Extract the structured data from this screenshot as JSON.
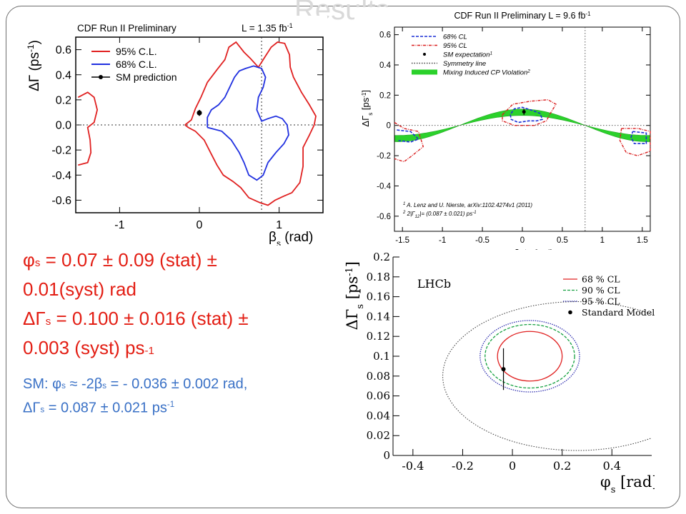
{
  "slide": {
    "title": "Results"
  },
  "results": {
    "phi_line1": [
      "φ",
      "s",
      " = 0.07 ± 0.09 (stat) ±"
    ],
    "phi_line2": "0.01(syst) rad",
    "dg_line1": [
      "ΔΓ",
      "s",
      " = 0.100 ± 0.016 (stat) ±"
    ],
    "dg_line2": [
      "0.003 (syst) ps",
      "-1"
    ]
  },
  "sm": {
    "line1": [
      "SM: φ",
      "s",
      " ≈ -2β",
      "s",
      " = - 0.036 ± 0.002 rad,"
    ],
    "line2": [
      "ΔΓ",
      "s",
      " = 0.087 ± 0.021 ps",
      "-1"
    ]
  },
  "chart_data": [
    {
      "type": "contour",
      "title": "CDF Run II Preliminary",
      "lumi": "L = 1.35 fb",
      "lumi_sup": "-1",
      "xlabel": "β",
      "xlabel_sub": "s",
      "xlabel_unit": " (rad)",
      "ylabel": "ΔΓ (ps",
      "ylabel_sup": "-1",
      "ylabel_close": ")",
      "xlim": [
        -1.55,
        1.55
      ],
      "ylim": [
        -0.7,
        0.7
      ],
      "xticks": [
        -1,
        0,
        1
      ],
      "xtick_labels": [
        "-1",
        "0",
        "1"
      ],
      "yticks": [
        -0.6,
        -0.4,
        -0.2,
        0.0,
        0.2,
        0.4,
        0.6
      ],
      "ytick_labels": [
        "-0.6",
        "-0.4",
        "-0.2",
        "0.0",
        "0.2",
        "0.4",
        "0.6"
      ],
      "legend": [
        "95% C.L.",
        "68% C.L.",
        "SM prediction"
      ],
      "legend_colors": [
        "#e02020",
        "#2030e0",
        "#000000"
      ],
      "colors": {
        "cl95": "#e02020",
        "cl68": "#2030e0",
        "sm": "#000000",
        "guide": "#333333"
      },
      "reference_lines": {
        "y": 0.0,
        "x": 0.78
      },
      "sm_point": {
        "x": 0.0,
        "y": 0.096,
        "err": 0.024
      },
      "contour_95_main": [
        [
          -0.18,
          0.0
        ],
        [
          -0.1,
          0.04
        ],
        [
          -0.05,
          0.13
        ],
        [
          0.02,
          0.22
        ],
        [
          0.1,
          0.34
        ],
        [
          0.22,
          0.44
        ],
        [
          0.32,
          0.52
        ],
        [
          0.37,
          0.62
        ],
        [
          0.46,
          0.66
        ],
        [
          0.56,
          0.58
        ],
        [
          0.64,
          0.53
        ],
        [
          0.74,
          0.46
        ],
        [
          0.82,
          0.54
        ],
        [
          0.9,
          0.62
        ],
        [
          0.98,
          0.66
        ],
        [
          1.07,
          0.65
        ],
        [
          1.13,
          0.56
        ],
        [
          1.14,
          0.46
        ],
        [
          1.18,
          0.38
        ],
        [
          1.28,
          0.26
        ],
        [
          1.38,
          0.16
        ],
        [
          1.46,
          0.07
        ],
        [
          1.44,
          0.0
        ],
        [
          1.38,
          -0.08
        ],
        [
          1.3,
          -0.18
        ],
        [
          1.3,
          -0.33
        ],
        [
          1.26,
          -0.46
        ],
        [
          1.16,
          -0.54
        ],
        [
          1.05,
          -0.57
        ],
        [
          0.95,
          -0.6
        ],
        [
          0.86,
          -0.64
        ],
        [
          0.76,
          -0.62
        ],
        [
          0.62,
          -0.58
        ],
        [
          0.52,
          -0.5
        ],
        [
          0.42,
          -0.45
        ],
        [
          0.3,
          -0.4
        ],
        [
          0.22,
          -0.32
        ],
        [
          0.14,
          -0.22
        ],
        [
          0.06,
          -0.12
        ],
        [
          -0.05,
          -0.05
        ],
        [
          -0.14,
          -0.02
        ],
        [
          -0.18,
          0.0
        ]
      ],
      "contour_95_side": [
        [
          -1.52,
          0.22
        ],
        [
          -1.4,
          0.26
        ],
        [
          -1.32,
          0.22
        ],
        [
          -1.28,
          0.12
        ],
        [
          -1.32,
          0.02
        ],
        [
          -1.4,
          -0.02
        ],
        [
          -1.37,
          -0.12
        ],
        [
          -1.36,
          -0.22
        ],
        [
          -1.4,
          -0.3
        ],
        [
          -1.52,
          -0.32
        ]
      ],
      "contour_68": [
        [
          0.1,
          -0.02
        ],
        [
          0.1,
          0.06
        ],
        [
          0.15,
          0.12
        ],
        [
          0.24,
          0.16
        ],
        [
          0.32,
          0.22
        ],
        [
          0.38,
          0.3
        ],
        [
          0.44,
          0.38
        ],
        [
          0.5,
          0.43
        ],
        [
          0.58,
          0.45
        ],
        [
          0.68,
          0.47
        ],
        [
          0.78,
          0.45
        ],
        [
          0.83,
          0.38
        ],
        [
          0.8,
          0.3
        ],
        [
          0.74,
          0.22
        ],
        [
          0.72,
          0.12
        ],
        [
          0.78,
          0.03
        ],
        [
          0.86,
          0.05
        ],
        [
          0.96,
          0.07
        ],
        [
          1.04,
          0.05
        ],
        [
          1.1,
          0.0
        ],
        [
          1.12,
          -0.08
        ],
        [
          1.06,
          -0.15
        ],
        [
          0.96,
          -0.22
        ],
        [
          0.86,
          -0.3
        ],
        [
          0.8,
          -0.4
        ],
        [
          0.72,
          -0.44
        ],
        [
          0.62,
          -0.4
        ],
        [
          0.56,
          -0.3
        ],
        [
          0.5,
          -0.22
        ],
        [
          0.4,
          -0.12
        ],
        [
          0.28,
          -0.05
        ],
        [
          0.16,
          -0.03
        ],
        [
          0.1,
          -0.02
        ]
      ]
    },
    {
      "type": "contour",
      "title": "CDF Run II Preliminary L = 9.6 fb",
      "title_sup": "-1",
      "xlabel": "β",
      "xlabel_sub": "s",
      "xlabel_sup": "J/ψφ",
      "xlabel_unit": " [rad]",
      "ylabel": "ΔΓ",
      "ylabel_sub": "s",
      "ylabel_unit": " [ps",
      "ylabel_sup": "-1",
      "ylabel_close": "]",
      "xlim": [
        -1.6,
        1.6
      ],
      "ylim": [
        -0.7,
        0.65
      ],
      "xticks": [
        -1.5,
        -1.0,
        -0.5,
        0.0,
        0.5,
        1.0,
        1.5
      ],
      "xtick_labels": [
        "-1.5",
        "-1",
        "-0.5",
        "0",
        "0.5",
        "1",
        "1.5"
      ],
      "yticks": [
        -0.6,
        -0.4,
        -0.2,
        0.0,
        0.2,
        0.4,
        0.6
      ],
      "ytick_labels": [
        "-0.6",
        "-0.4",
        "-0.2",
        "0",
        "0.2",
        "0.4",
        "0.6"
      ],
      "legend": [
        "68% CL",
        "95% CL",
        "SM expectation",
        "Symmetry line",
        "Mixing Induced CP Violation"
      ],
      "legend_sups": [
        "",
        "",
        "1",
        "",
        "2"
      ],
      "footnote1": "A. Lenz and U. Nierste, arXiv:1102.4274v1 (2011)",
      "footnote2": "2|Γ",
      "footnote2_sub": "12",
      "footnote2_rest": "|= (0.087 ± 0.021) ps",
      "footnote2_sup": "-1",
      "colors": {
        "cl68": "#1a2fd6",
        "cl95": "#d91f1f",
        "band": "#2bd12b",
        "sym": "#444444",
        "sm": "#000000"
      },
      "symmetry_x": 0.785,
      "zero_y": 0.0,
      "sm_point": {
        "x": 0.02,
        "y": 0.09,
        "err": 0.021
      },
      "band": {
        "amplitude": 0.087,
        "half_width": 0.021
      },
      "contour_68_a": [
        [
          -0.14,
          0.08
        ],
        [
          -0.1,
          0.11
        ],
        [
          0.0,
          0.12
        ],
        [
          0.12,
          0.1
        ],
        [
          0.22,
          0.08
        ],
        [
          0.25,
          0.04
        ],
        [
          0.18,
          0.03
        ],
        [
          0.08,
          0.03
        ],
        [
          -0.05,
          0.02
        ],
        [
          -0.14,
          0.04
        ],
        [
          -0.15,
          0.07
        ],
        [
          -0.14,
          0.08
        ]
      ],
      "contour_68_b": [
        [
          -1.57,
          -0.03
        ],
        [
          -1.4,
          -0.04
        ],
        [
          -1.3,
          -0.09
        ],
        [
          -1.4,
          -0.11
        ],
        [
          -1.55,
          -0.1
        ]
      ],
      "contour_68_c": [
        [
          1.38,
          -0.04
        ],
        [
          1.55,
          -0.05
        ],
        [
          1.55,
          -0.12
        ],
        [
          1.4,
          -0.12
        ],
        [
          1.36,
          -0.08
        ],
        [
          1.38,
          -0.04
        ]
      ],
      "contour_95_a": [
        [
          -0.25,
          0.07
        ],
        [
          -0.12,
          0.14
        ],
        [
          0.1,
          0.16
        ],
        [
          0.32,
          0.17
        ],
        [
          0.42,
          0.14
        ],
        [
          0.35,
          0.08
        ],
        [
          0.3,
          0.03
        ],
        [
          0.15,
          0.0
        ],
        [
          -0.1,
          0.0
        ],
        [
          -0.25,
          0.03
        ],
        [
          -0.25,
          0.07
        ]
      ],
      "contour_95_b": [
        [
          -1.6,
          0.02
        ],
        [
          -1.48,
          -0.02
        ],
        [
          -1.3,
          -0.04
        ],
        [
          -1.24,
          -0.14
        ],
        [
          -1.38,
          -0.2
        ],
        [
          -1.48,
          -0.24
        ],
        [
          -1.6,
          -0.22
        ]
      ],
      "contour_95_c": [
        [
          1.24,
          -0.02
        ],
        [
          1.45,
          -0.02
        ],
        [
          1.6,
          -0.04
        ],
        [
          1.6,
          -0.17
        ],
        [
          1.44,
          -0.2
        ],
        [
          1.3,
          -0.18
        ],
        [
          1.22,
          -0.1
        ],
        [
          1.24,
          -0.02
        ]
      ]
    },
    {
      "type": "contour",
      "label": "LHCb",
      "xlabel": "φ",
      "xlabel_sub": "s",
      "xlabel_unit": " [rad]",
      "ylabel": "ΔΓ",
      "ylabel_sub": "s",
      "ylabel_unit": " [ps",
      "ylabel_sup": "-1",
      "ylabel_close": "]",
      "xlim": [
        -0.48,
        0.56
      ],
      "ylim": [
        0.0,
        0.2
      ],
      "xticks": [
        -0.4,
        -0.2,
        0.0,
        0.2,
        0.4
      ],
      "xtick_labels": [
        "-0.4",
        "-0.2",
        "0",
        "0.2",
        "0.4"
      ],
      "yticks": [
        0.0,
        0.02,
        0.04,
        0.06,
        0.08,
        0.1,
        0.12,
        0.14,
        0.16,
        0.18,
        0.2
      ],
      "ytick_labels": [
        "0",
        "0.02",
        "0.04",
        "0.06",
        "0.08",
        "0.1",
        "0.12",
        "0.14",
        "0.16",
        "0.18",
        "0.2"
      ],
      "legend": [
        "68 % CL",
        "90 % CL",
        "95 % CL",
        "Standard Model"
      ],
      "colors": {
        "cl68": "#e02020",
        "cl90": "#15a040",
        "cl95": "#3030b0",
        "sm": "#000000",
        "band": "#333333"
      },
      "ellipses": [
        {
          "name": "68 % CL",
          "cx": 0.07,
          "cy": 0.1,
          "rx": 0.13,
          "ry": 0.025
        },
        {
          "name": "90 % CL",
          "cx": 0.07,
          "cy": 0.1,
          "rx": 0.18,
          "ry": 0.032
        },
        {
          "name": "95 % CL",
          "cx": 0.07,
          "cy": 0.1,
          "rx": 0.2,
          "ry": 0.036
        }
      ],
      "sm_band": {
        "cx": 0.26,
        "cy": 0.08,
        "rx": 0.54,
        "ry": 0.075
      },
      "sm_point": {
        "x": -0.036,
        "y": 0.087,
        "err": 0.021
      }
    }
  ]
}
